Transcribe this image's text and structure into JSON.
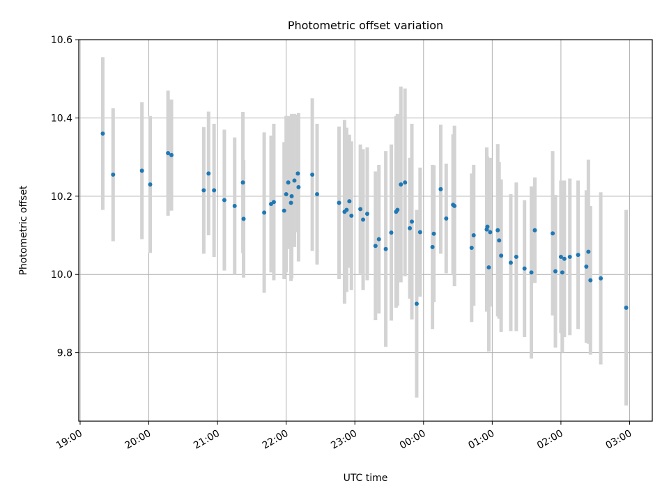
{
  "chart_data": {
    "type": "scatter",
    "title": "Photometric offset variation",
    "xlabel": "UTC time",
    "ylabel": "Photometric offset",
    "x_ticks": [
      "19:00",
      "20:00",
      "21:00",
      "22:00",
      "23:00",
      "00:00",
      "01:00",
      "02:00",
      "03:00"
    ],
    "y_ticks": [
      "9.8",
      "10.0",
      "10.2",
      "10.4",
      "10.6"
    ],
    "x_tick_hours": [
      19,
      20,
      21,
      22,
      23,
      24,
      25,
      26,
      27
    ],
    "y_tick_values": [
      9.8,
      10.0,
      10.2,
      10.4,
      10.6
    ],
    "xlim_hours": [
      18.98,
      27.33
    ],
    "ylim": [
      9.625,
      10.6
    ],
    "grid": true,
    "point_color": "#1f77b4",
    "errorbar_color": "#d3d3d3",
    "x_hours": [
      19.33,
      19.48,
      19.9,
      20.02,
      20.28,
      20.33,
      20.8,
      20.87,
      20.95,
      21.1,
      21.25,
      21.37,
      21.38,
      21.68,
      21.78,
      21.82,
      21.97,
      22.0,
      22.03,
      22.07,
      22.08,
      22.12,
      22.17,
      22.18,
      22.38,
      22.45,
      22.77,
      22.85,
      22.88,
      22.92,
      22.95,
      23.08,
      23.12,
      23.18,
      23.3,
      23.35,
      23.45,
      23.53,
      23.6,
      23.62,
      23.67,
      23.73,
      23.8,
      23.83,
      23.9,
      23.95,
      24.13,
      24.15,
      24.25,
      24.33,
      24.43,
      24.45,
      24.7,
      24.73,
      24.92,
      24.93,
      24.95,
      24.97,
      25.08,
      25.1,
      25.13,
      25.27,
      25.35,
      25.47,
      25.57,
      25.62,
      25.88,
      25.92,
      26.0,
      26.02,
      26.05,
      26.13,
      26.25,
      26.37,
      26.4,
      26.43,
      26.58,
      26.95
    ],
    "y_values": [
      10.36,
      10.255,
      10.265,
      10.23,
      10.31,
      10.305,
      10.215,
      10.258,
      10.215,
      10.19,
      10.175,
      10.235,
      10.142,
      10.158,
      10.18,
      10.185,
      10.163,
      10.205,
      10.235,
      10.183,
      10.2,
      10.24,
      10.258,
      10.223,
      10.255,
      10.205,
      10.183,
      10.16,
      10.165,
      10.187,
      10.15,
      10.167,
      10.14,
      10.155,
      10.073,
      10.09,
      10.065,
      10.107,
      10.16,
      10.165,
      10.23,
      10.235,
      10.118,
      10.135,
      9.925,
      10.108,
      10.07,
      10.104,
      10.218,
      10.143,
      10.178,
      10.175,
      10.068,
      10.1,
      10.115,
      10.122,
      10.018,
      10.108,
      10.113,
      10.087,
      10.048,
      10.03,
      10.045,
      10.015,
      10.005,
      10.113,
      10.105,
      10.008,
      10.045,
      10.005,
      10.04,
      10.045,
      10.05,
      10.02,
      10.058,
      9.985,
      9.99,
      9.915
    ],
    "y_errors": [
      0.195,
      0.17,
      0.175,
      0.175,
      0.16,
      0.142,
      0.162,
      0.158,
      0.17,
      0.18,
      0.175,
      0.18,
      0.15,
      0.205,
      0.175,
      0.2,
      0.175,
      0.2,
      0.17,
      0.2,
      0.21,
      0.17,
      0.15,
      0.19,
      0.195,
      0.18,
      0.195,
      0.235,
      0.21,
      0.17,
      0.19,
      0.165,
      0.18,
      0.17,
      0.19,
      0.19,
      0.25,
      0.225,
      0.245,
      0.245,
      0.25,
      0.24,
      0.18,
      0.25,
      0.24,
      0.165,
      0.21,
      0.175,
      0.165,
      0.14,
      0.18,
      0.205,
      0.19,
      0.18,
      0.21,
      0.18,
      0.215,
      0.19,
      0.22,
      0.2,
      0.195,
      0.175,
      0.19,
      0.175,
      0.22,
      0.135,
      0.21,
      0.195,
      0.195,
      0.205,
      0.2,
      0.2,
      0.19,
      0.195,
      0.235,
      0.19,
      0.22,
      0.25
    ]
  }
}
